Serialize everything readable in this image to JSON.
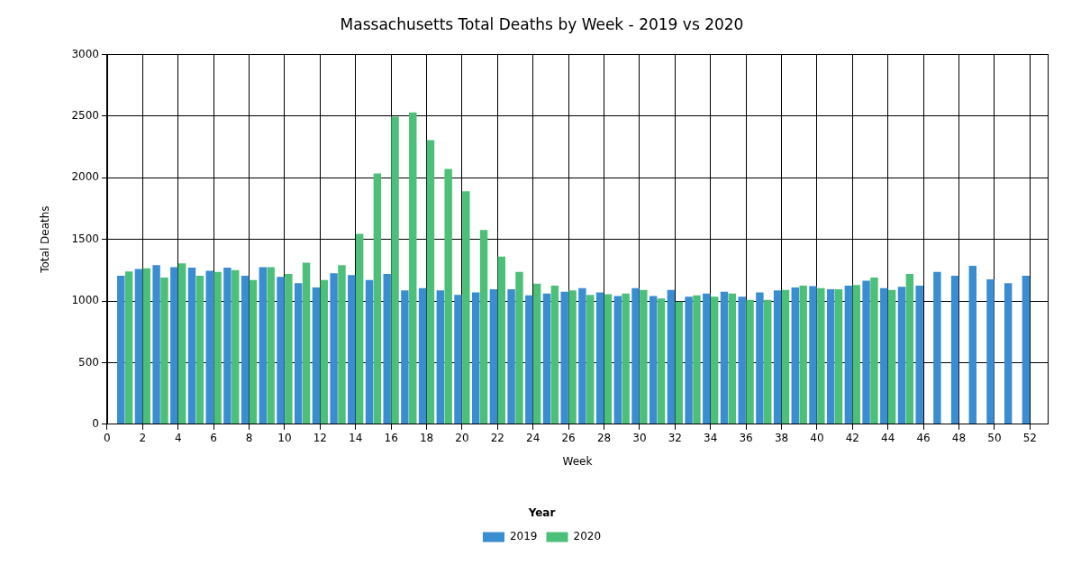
{
  "chart_data": {
    "type": "bar",
    "title": "Massachusetts Total Deaths by Week - 2019 vs 2020",
    "x_label": "Week",
    "y_label": "Total Deaths",
    "x": [
      1,
      2,
      3,
      4,
      5,
      6,
      7,
      8,
      9,
      10,
      11,
      12,
      13,
      14,
      15,
      16,
      17,
      18,
      19,
      20,
      21,
      22,
      23,
      24,
      25,
      26,
      27,
      28,
      29,
      30,
      31,
      32,
      33,
      34,
      35,
      36,
      37,
      38,
      39,
      40,
      41,
      42,
      43,
      44,
      45,
      46,
      47,
      48,
      49,
      50,
      51,
      52
    ],
    "series": [
      {
        "name": "2019",
        "color": "#3a8dd1",
        "values": [
          1205,
          1260,
          1290,
          1275,
          1270,
          1245,
          1270,
          1205,
          1275,
          1195,
          1145,
          1110,
          1225,
          1210,
          1170,
          1220,
          1085,
          1105,
          1085,
          1050,
          1070,
          1095,
          1095,
          1045,
          1060,
          1075,
          1105,
          1070,
          1040,
          1105,
          1040,
          1090,
          1035,
          1060,
          1075,
          1035,
          1070,
          1085,
          1110,
          1120,
          1095,
          1125,
          1165,
          1105,
          1115,
          1125,
          1235,
          1205,
          1285,
          1175,
          1145,
          1205
        ]
      },
      {
        "name": "2020",
        "color": "#4cbf78",
        "values": [
          1240,
          1265,
          1190,
          1305,
          1205,
          1235,
          1250,
          1170,
          1275,
          1220,
          1310,
          1170,
          1290,
          1545,
          2035,
          2495,
          2530,
          2305,
          2070,
          1890,
          1575,
          1360,
          1235,
          1140,
          1125,
          1085,
          1050,
          1055,
          1060,
          1090,
          1020,
          995,
          1045,
          1035,
          1060,
          1010,
          1010,
          1090,
          1125,
          1105,
          1095,
          1130,
          1190,
          1090,
          1220,
          null,
          null,
          null,
          null,
          null,
          null,
          null
        ]
      }
    ],
    "xlim": [
      0,
      53
    ],
    "xticks": [
      0,
      2,
      4,
      6,
      8,
      10,
      12,
      14,
      16,
      18,
      20,
      22,
      24,
      26,
      28,
      30,
      32,
      34,
      36,
      38,
      40,
      42,
      44,
      46,
      48,
      50,
      52
    ],
    "ylim": [
      0,
      3000
    ],
    "yticks": [
      0,
      500,
      1000,
      1500,
      2000,
      2500,
      3000
    ],
    "grid": true,
    "legend": "bottom",
    "legend_title": "Year"
  }
}
